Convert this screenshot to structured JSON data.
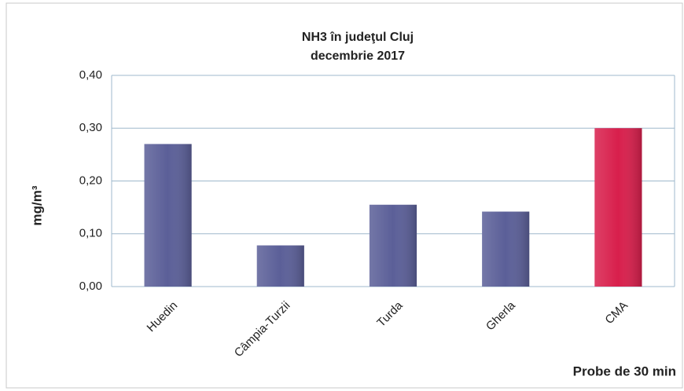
{
  "chart_data": {
    "type": "bar",
    "title": "NH3 în judeţul Cluj",
    "subtitle": "decembrie 2017",
    "y_label": "mg/m³",
    "x_label": "Probe de 30 min",
    "categories": [
      "Huedin",
      "Câmpia-Turzii",
      "Turda",
      "Gherla",
      "CMA"
    ],
    "values": [
      0.27,
      0.078,
      0.155,
      0.142,
      0.3
    ],
    "colors": [
      "#5b5f98",
      "#5b5f98",
      "#5b5f98",
      "#5b5f98",
      "#d81f4c"
    ],
    "ylim": [
      0,
      0.4
    ],
    "yticks": [
      {
        "value": 0,
        "label": "0,00"
      },
      {
        "value": 0.1,
        "label": "0,10"
      },
      {
        "value": 0.2,
        "label": "0,20"
      },
      {
        "value": 0.3,
        "label": "0,30"
      },
      {
        "value": 0.4,
        "label": "0,40"
      }
    ],
    "grid": true
  }
}
